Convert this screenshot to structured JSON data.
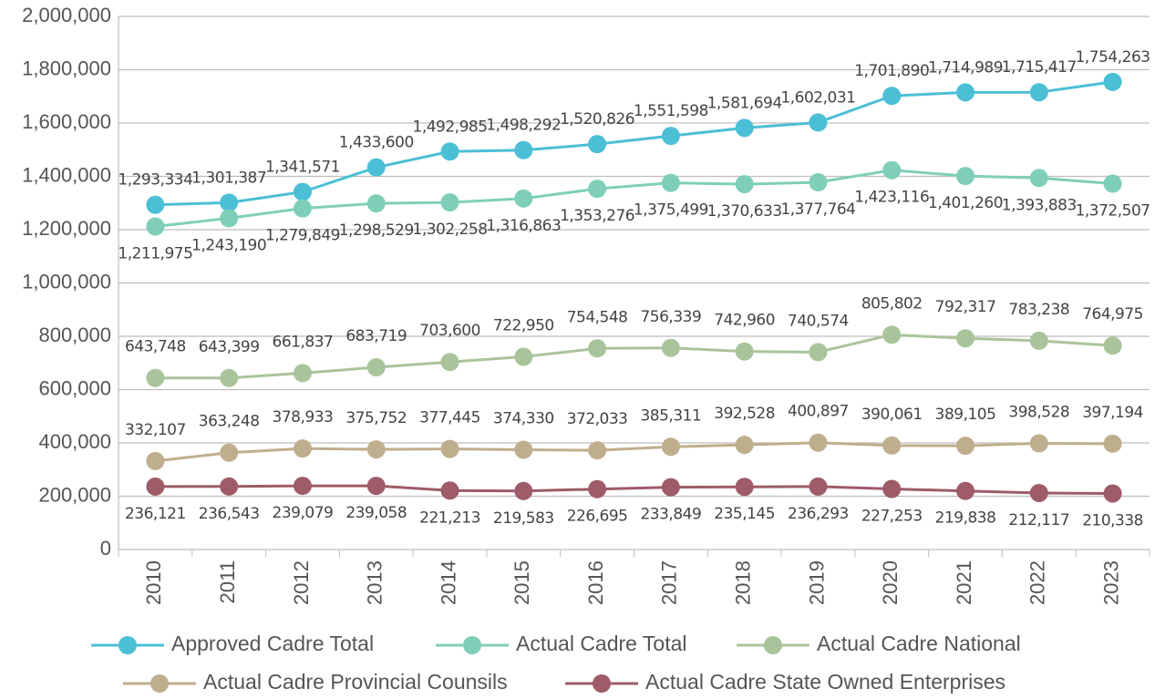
{
  "chart_data": {
    "type": "line",
    "categories": [
      "2010",
      "2011",
      "2012",
      "2013",
      "2014",
      "2015",
      "2016",
      "2017",
      "2018",
      "2019",
      "2020",
      "2021",
      "2022",
      "2023"
    ],
    "series": [
      {
        "name": "Approved Cadre Total",
        "color": "#4bbfd6",
        "values": [
          1293334,
          1301387,
          1341571,
          1433600,
          1492985,
          1498292,
          1520826,
          1551598,
          1581694,
          1602031,
          1701890,
          1714989,
          1715417,
          1754263
        ],
        "value_labels": [
          "1,293,334",
          "1,301,387",
          "1,341,571",
          "1,433,600",
          "1,492,985",
          "1,498,292",
          "1,520,826",
          "1,551,598",
          "1,581,694",
          "1,602,031",
          "1,701,890",
          "1,714,989",
          "1,715,417",
          "1,754,263"
        ]
      },
      {
        "name": "Actual Cadre Total",
        "color": "#7fcfb8",
        "values": [
          1211975,
          1243190,
          1279849,
          1298529,
          1302258,
          1316863,
          1353276,
          1375499,
          1370633,
          1377764,
          1423116,
          1401260,
          1393883,
          1372507
        ],
        "value_labels": [
          "1,211,975",
          "1,243,190",
          "1,279,849",
          "1,298,529",
          "1,302,258",
          "1,316,863",
          "1,353,276",
          "1,375,499",
          "1,370,633",
          "1,377,764",
          "1,423,116",
          "1,401,260",
          "1,393,883",
          "1,372,507"
        ]
      },
      {
        "name": "Actual Cadre National",
        "color": "#a9c49a",
        "values": [
          643748,
          643399,
          661837,
          683719,
          703600,
          722950,
          754548,
          756339,
          742960,
          740574,
          805802,
          792317,
          783238,
          764975
        ],
        "value_labels": [
          "643,748",
          "643,399",
          "661,837",
          "683,719",
          "703,600",
          "722,950",
          "754,548",
          "756,339",
          "742,960",
          "740,574",
          "805,802",
          "792,317",
          "783,238",
          "764,975"
        ]
      },
      {
        "name": "Actual Cadre Provincial Counsils",
        "color": "#bfae8e",
        "values": [
          332107,
          363248,
          378933,
          375752,
          377445,
          374330,
          372033,
          385311,
          392528,
          400897,
          390061,
          389105,
          398528,
          397194
        ],
        "value_labels": [
          "332,107",
          "363,248",
          "378,933",
          "375,752",
          "377,445",
          "374,330",
          "372,033",
          "385,311",
          "392,528",
          "400,897",
          "390,061",
          "389,105",
          "398,528",
          "397,194"
        ]
      },
      {
        "name": "Actual Cadre State Owned Enterprises",
        "color": "#9e5b68",
        "values": [
          236121,
          236543,
          239079,
          239058,
          221213,
          219583,
          226695,
          233849,
          235145,
          236293,
          227253,
          219838,
          212117,
          210338
        ],
        "value_labels": [
          "236,121",
          "236,543",
          "239,079",
          "239,058",
          "221,213",
          "219,583",
          "226,695",
          "233,849",
          "235,145",
          "236,293",
          "227,253",
          "219,838",
          "212,117",
          "210,338"
        ]
      }
    ],
    "ylim": [
      0,
      2000000
    ],
    "yticks": [
      0,
      {
        "value": 200000,
        "label": "200,000"
      },
      {
        "value": 400000,
        "label": "400,000"
      },
      {
        "value": 600000,
        "label": "600,000"
      },
      {
        "value": 800000,
        "label": "800,000"
      },
      {
        "value": 1000000,
        "label": "1,000,000"
      },
      {
        "value": 1200000,
        "label": "1,200,000"
      },
      {
        "value": 1400000,
        "label": "1,400,000"
      },
      {
        "value": 1600000,
        "label": "1,600,000"
      },
      {
        "value": 1800000,
        "label": "1,800,000"
      },
      {
        "value": 2000000,
        "label": "2,000,000"
      }
    ],
    "grid": true,
    "legend": "bottom"
  }
}
